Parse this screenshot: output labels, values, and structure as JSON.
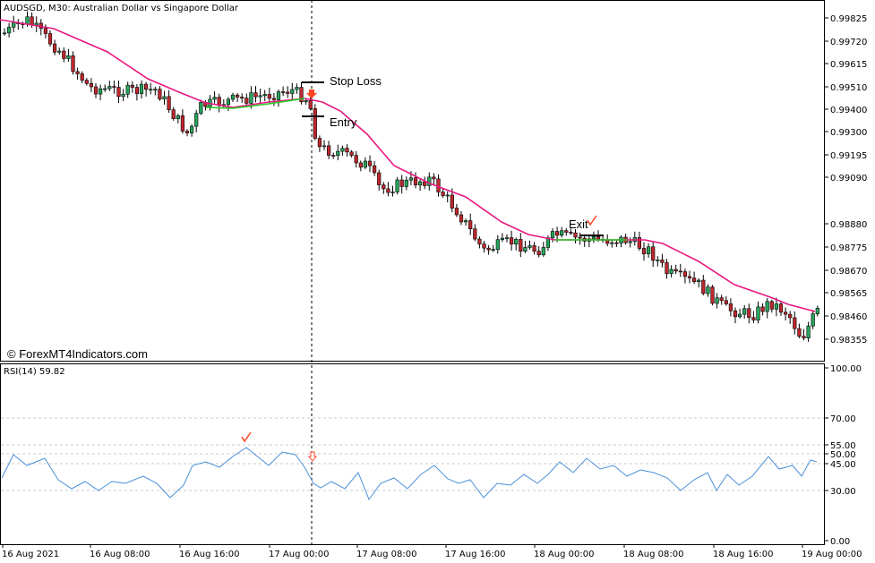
{
  "main_window": {
    "title": "AUDSGD, M30:  Australian Dollar vs Singapore Dollar",
    "watermark": "© ForexMT4Indicators.com"
  },
  "price_axis": {
    "labels": [
      "0.99825",
      "0.99720",
      "0.99615",
      "0.99510",
      "0.99400",
      "0.99300",
      "0.99195",
      "0.99090",
      "0.98880",
      "0.98775",
      "0.98670",
      "0.98565",
      "0.98460",
      "0.98355"
    ]
  },
  "annotations": {
    "stop_loss": "Stop Loss",
    "entry": "Entry",
    "exit": "Exit"
  },
  "rsi_window": {
    "title": "RSI(14) 59.82",
    "axis_labels": [
      "100.00",
      "70.00",
      "55.00",
      "50.00",
      "45.00",
      "30.00",
      "0.00"
    ]
  },
  "time_axis": {
    "labels": [
      "16 Aug 2021",
      "16 Aug 08:00",
      "16 Aug 16:00",
      "17 Aug 00:00",
      "17 Aug 08:00",
      "17 Aug 16:00",
      "18 Aug 00:00",
      "18 Aug 08:00",
      "18 Aug 16:00",
      "19 Aug 00:00"
    ]
  },
  "colors": {
    "bull": "#26a65b",
    "bear": "#c0272d",
    "ma_line": "#e8177f",
    "ma_up": "#22cc22",
    "rsi_line": "#4a90d9",
    "arrow": "#ff4422"
  }
}
